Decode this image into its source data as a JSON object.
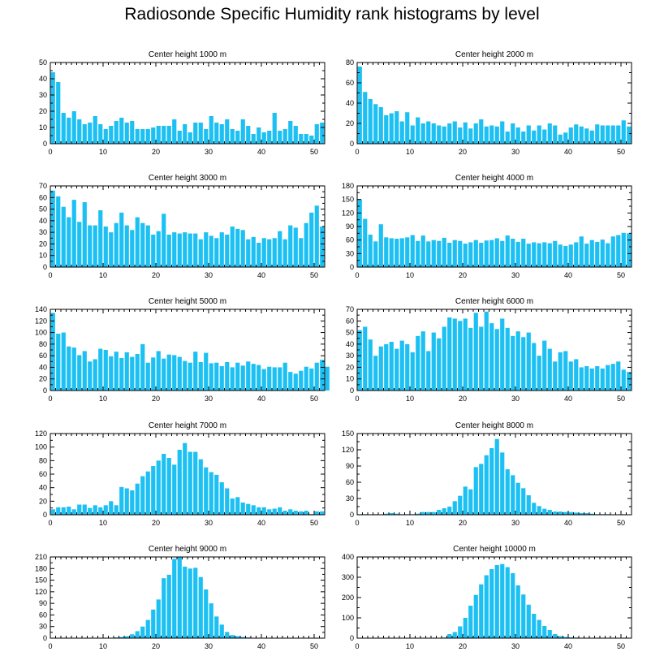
{
  "title": "Radiosonde Specific Humidity rank histograms by level",
  "bar_color": "#1cc0f3",
  "chart_data": [
    {
      "type": "bar",
      "title": "Center height 1000 m",
      "xlim": [
        0,
        52
      ],
      "ylim": [
        0,
        50
      ],
      "xticks": [
        0,
        10,
        20,
        30,
        40,
        50
      ],
      "yticks": [
        0,
        10,
        20,
        30,
        40,
        50
      ],
      "values": [
        44,
        38,
        19,
        16,
        20,
        15,
        12,
        13,
        17,
        12,
        9,
        11,
        14,
        16,
        13,
        14,
        9,
        9,
        9,
        10,
        11,
        11,
        11,
        15,
        8,
        12,
        7,
        13,
        13,
        9,
        17,
        13,
        12,
        15,
        9,
        8,
        15,
        11,
        6,
        10,
        7,
        8,
        19,
        8,
        9,
        14,
        11,
        6,
        6,
        5,
        12,
        13
      ]
    },
    {
      "type": "bar",
      "title": "Center height 2000 m",
      "xlim": [
        0,
        52
      ],
      "ylim": [
        0,
        80
      ],
      "xticks": [
        0,
        10,
        20,
        30,
        40,
        50
      ],
      "yticks": [
        0,
        20,
        40,
        60,
        80
      ],
      "values": [
        76,
        51,
        44,
        39,
        36,
        28,
        30,
        32,
        22,
        31,
        18,
        26,
        20,
        22,
        20,
        18,
        17,
        20,
        22,
        16,
        21,
        15,
        20,
        24,
        17,
        18,
        17,
        22,
        12,
        20,
        16,
        12,
        18,
        13,
        18,
        14,
        20,
        18,
        9,
        11,
        16,
        19,
        17,
        15,
        13,
        19,
        18,
        18,
        18,
        18,
        23,
        17
      ]
    },
    {
      "type": "bar",
      "title": "Center height 3000 m",
      "xlim": [
        0,
        52
      ],
      "ylim": [
        0,
        70
      ],
      "xticks": [
        0,
        10,
        20,
        30,
        40,
        50
      ],
      "yticks": [
        0,
        10,
        20,
        30,
        40,
        50,
        60,
        70
      ],
      "values": [
        66,
        61,
        52,
        43,
        58,
        39,
        56,
        36,
        36,
        49,
        35,
        30,
        38,
        47,
        36,
        32,
        43,
        38,
        36,
        28,
        31,
        46,
        28,
        30,
        29,
        30,
        29,
        29,
        24,
        30,
        27,
        25,
        30,
        28,
        35,
        33,
        32,
        24,
        26,
        21,
        25,
        24,
        25,
        31,
        24,
        36,
        34,
        25,
        38,
        47,
        53,
        35
      ]
    },
    {
      "type": "bar",
      "title": "Center height 4000 m",
      "xlim": [
        0,
        52
      ],
      "ylim": [
        0,
        180
      ],
      "xticks": [
        0,
        10,
        20,
        30,
        40,
        50
      ],
      "yticks": [
        0,
        30,
        60,
        90,
        120,
        150,
        180
      ],
      "values": [
        150,
        107,
        72,
        57,
        95,
        66,
        64,
        63,
        64,
        66,
        71,
        58,
        70,
        57,
        60,
        58,
        65,
        54,
        60,
        58,
        52,
        55,
        60,
        54,
        59,
        60,
        64,
        58,
        70,
        63,
        56,
        63,
        52,
        55,
        53,
        55,
        53,
        58,
        50,
        47,
        50,
        55,
        68,
        52,
        60,
        56,
        61,
        53,
        68,
        71,
        76,
        75
      ]
    },
    {
      "type": "bar",
      "title": "Center height 5000 m",
      "xlim": [
        0,
        52
      ],
      "ylim": [
        0,
        140
      ],
      "xticks": [
        0,
        10,
        20,
        30,
        40,
        50
      ],
      "yticks": [
        0,
        20,
        40,
        60,
        80,
        100,
        120,
        140
      ],
      "values": [
        134,
        98,
        100,
        76,
        74,
        61,
        68,
        50,
        54,
        72,
        70,
        59,
        67,
        56,
        66,
        58,
        63,
        80,
        48,
        57,
        68,
        55,
        62,
        61,
        58,
        51,
        48,
        67,
        49,
        65,
        47,
        48,
        42,
        49,
        40,
        48,
        43,
        50,
        46,
        44,
        37,
        41,
        40,
        40,
        48,
        32,
        29,
        34,
        41,
        38,
        48,
        53,
        41
      ]
    },
    {
      "type": "bar",
      "title": "Center height 6000 m",
      "xlim": [
        0,
        52
      ],
      "ylim": [
        0,
        70
      ],
      "xticks": [
        0,
        10,
        20,
        30,
        40,
        50
      ],
      "yticks": [
        0,
        10,
        20,
        30,
        40,
        50,
        60,
        70
      ],
      "values": [
        52,
        55,
        44,
        30,
        38,
        40,
        42,
        36,
        43,
        40,
        33,
        47,
        51,
        34,
        50,
        45,
        55,
        63,
        62,
        60,
        62,
        54,
        67,
        55,
        68,
        58,
        53,
        62,
        54,
        47,
        51,
        46,
        50,
        41,
        30,
        43,
        36,
        25,
        33,
        34,
        25,
        27,
        20,
        21,
        19,
        21,
        19,
        22,
        23,
        25,
        18,
        16
      ]
    },
    {
      "type": "bar",
      "title": "Center height 7000 m",
      "xlim": [
        0,
        52
      ],
      "ylim": [
        0,
        120
      ],
      "xticks": [
        0,
        10,
        20,
        30,
        40,
        50
      ],
      "yticks": [
        0,
        20,
        40,
        60,
        80,
        100,
        120
      ],
      "values": [
        8,
        11,
        11,
        12,
        8,
        15,
        15,
        10,
        14,
        11,
        14,
        20,
        14,
        41,
        39,
        36,
        46,
        57,
        64,
        72,
        80,
        90,
        84,
        74,
        96,
        106,
        93,
        93,
        82,
        70,
        63,
        59,
        48,
        39,
        24,
        26,
        18,
        16,
        14,
        11,
        11,
        8,
        9,
        11,
        6,
        8,
        6,
        5,
        6,
        1,
        5,
        5
      ]
    },
    {
      "type": "bar",
      "title": "Center height 8000 m",
      "xlim": [
        0,
        52
      ],
      "ylim": [
        0,
        150
      ],
      "xticks": [
        0,
        10,
        20,
        30,
        40,
        50
      ],
      "yticks": [
        0,
        30,
        60,
        90,
        120,
        150
      ],
      "values": [
        1,
        1,
        0,
        1,
        0,
        2,
        3,
        2,
        1,
        1,
        1,
        2,
        5,
        5,
        5,
        9,
        12,
        15,
        25,
        35,
        52,
        47,
        88,
        94,
        110,
        123,
        140,
        115,
        84,
        73,
        59,
        49,
        36,
        22,
        16,
        11,
        9,
        6,
        6,
        5,
        5,
        4,
        3,
        3,
        2,
        1,
        1,
        1,
        0,
        0,
        1,
        0
      ]
    },
    {
      "type": "bar",
      "title": "Center height 9000 m",
      "xlim": [
        0,
        52
      ],
      "ylim": [
        0,
        210
      ],
      "xticks": [
        0,
        10,
        20,
        30,
        40,
        50
      ],
      "yticks": [
        0,
        30,
        60,
        90,
        120,
        150,
        180,
        210
      ],
      "values": [
        0,
        0,
        0,
        0,
        0,
        0,
        0,
        0,
        0,
        0,
        0,
        1,
        2,
        3,
        5,
        10,
        18,
        30,
        47,
        74,
        100,
        155,
        164,
        205,
        212,
        185,
        180,
        182,
        158,
        126,
        90,
        56,
        35,
        16,
        8,
        5,
        3,
        2,
        1,
        1,
        1,
        0,
        0,
        0,
        0,
        0,
        0,
        0,
        0,
        0,
        0,
        0
      ]
    },
    {
      "type": "bar",
      "title": "Center height 10000 m",
      "xlim": [
        0,
        52
      ],
      "ylim": [
        0,
        400
      ],
      "xticks": [
        0,
        10,
        20,
        30,
        40,
        50
      ],
      "yticks": [
        0,
        100,
        200,
        300,
        400
      ],
      "values": [
        0,
        0,
        0,
        0,
        0,
        0,
        0,
        0,
        0,
        0,
        0,
        0,
        0,
        0,
        0,
        1,
        3,
        20,
        30,
        58,
        100,
        160,
        213,
        265,
        310,
        340,
        360,
        365,
        350,
        320,
        260,
        215,
        165,
        120,
        90,
        60,
        40,
        20,
        10,
        6,
        4,
        3,
        2,
        1,
        1,
        0,
        0,
        0,
        0,
        0,
        0,
        0
      ]
    }
  ]
}
